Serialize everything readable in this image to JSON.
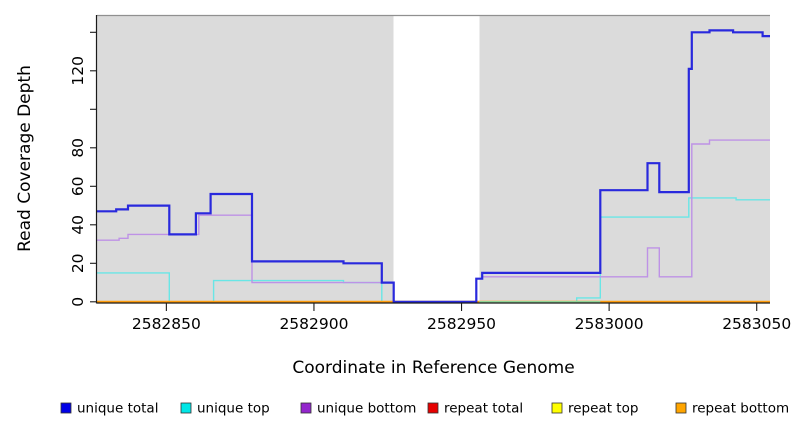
{
  "figure_title": "",
  "chart_data": {
    "type": "line",
    "subtype": "step-coverage",
    "title": "",
    "xlabel": "Coordinate in Reference Genome",
    "ylabel": "Read Coverage Depth",
    "xlim": [
      2582826.5,
      2583054.5
    ],
    "ylim": [
      0,
      149
    ],
    "x_ticks": [
      2582850,
      2582900,
      2582950,
      2583000,
      2583050
    ],
    "x_tick_labels": [
      "2582850",
      "2582900",
      "2582950",
      "2583000",
      "2583050"
    ],
    "y_ticks": [
      0,
      20,
      40,
      60,
      80,
      100,
      120,
      140
    ],
    "y_tick_labels": [
      "0",
      "20",
      "40",
      "60",
      "80",
      "",
      "120",
      ""
    ],
    "grid": false,
    "panel_background": "#DBDBDB",
    "top_border_color": "#909090",
    "masked_region": {
      "x_start": 2582927,
      "x_end": 2582956,
      "color": "#FFFFFF"
    },
    "zero_line_blend_segment": {
      "x_start": 2582956,
      "x_end": 2582997,
      "value": 0,
      "color": "#8FD496"
    },
    "draw_order": [
      "unique top",
      "unique bottom",
      "repeat total",
      "repeat top",
      "repeat bottom"
    ],
    "top_series": "unique total",
    "series": [
      {
        "name": "unique total",
        "line_color": "#2929DD",
        "line_width": 2.2,
        "steps": [
          [
            2582826,
            47
          ],
          [
            2582833,
            48
          ],
          [
            2582837,
            50
          ],
          [
            2582851,
            35
          ],
          [
            2582860,
            46
          ],
          [
            2582865,
            56
          ],
          [
            2582879,
            21
          ],
          [
            2582910,
            20
          ],
          [
            2582923,
            10
          ],
          [
            2582927,
            0
          ],
          [
            2582955,
            12
          ],
          [
            2582957,
            15
          ],
          [
            2582997,
            58
          ],
          [
            2583013,
            72
          ],
          [
            2583017,
            57
          ],
          [
            2583027,
            121
          ],
          [
            2583028,
            140
          ],
          [
            2583034,
            141
          ],
          [
            2583042,
            140
          ],
          [
            2583052,
            138
          ]
        ]
      },
      {
        "name": "unique top",
        "line_color": "#69E6E6",
        "line_width": 1.4,
        "steps": [
          [
            2582826,
            15
          ],
          [
            2582851,
            0
          ],
          [
            2582866,
            11
          ],
          [
            2582910,
            10
          ],
          [
            2582923,
            0
          ],
          [
            2582989,
            2
          ],
          [
            2582997,
            44
          ],
          [
            2583027,
            54
          ],
          [
            2583043,
            53
          ]
        ]
      },
      {
        "name": "unique bottom",
        "line_color": "#BE92E6",
        "line_width": 1.4,
        "steps": [
          [
            2582826,
            32
          ],
          [
            2582834,
            33
          ],
          [
            2582837,
            35
          ],
          [
            2582861,
            45
          ],
          [
            2582879,
            10
          ],
          [
            2582927,
            0
          ],
          [
            2582955,
            12
          ],
          [
            2582957,
            13
          ],
          [
            2583013,
            28
          ],
          [
            2583017,
            13
          ],
          [
            2583028,
            82
          ],
          [
            2583034,
            84
          ]
        ]
      },
      {
        "name": "repeat total",
        "line_color": "#CC0000",
        "line_width": 1.2,
        "steps": [
          [
            2582826,
            0
          ]
        ]
      },
      {
        "name": "repeat top",
        "line_color": "#E6E600",
        "line_width": 1.2,
        "steps": [
          [
            2582826,
            0
          ]
        ]
      },
      {
        "name": "repeat bottom",
        "line_color": "#FF9D0D",
        "line_width": 2.0,
        "steps": [
          [
            2582826,
            0
          ]
        ]
      }
    ]
  },
  "legend": {
    "items": [
      {
        "label": "unique total",
        "swatch_color": "#0000E6"
      },
      {
        "label": "unique top",
        "swatch_color": "#00E6E6"
      },
      {
        "label": "unique bottom",
        "swatch_color": "#9326CC"
      },
      {
        "label": "repeat total",
        "swatch_color": "#E60000"
      },
      {
        "label": "repeat top",
        "swatch_color": "#FFFF00"
      },
      {
        "label": "repeat bottom",
        "swatch_color": "#FFA500"
      }
    ]
  }
}
